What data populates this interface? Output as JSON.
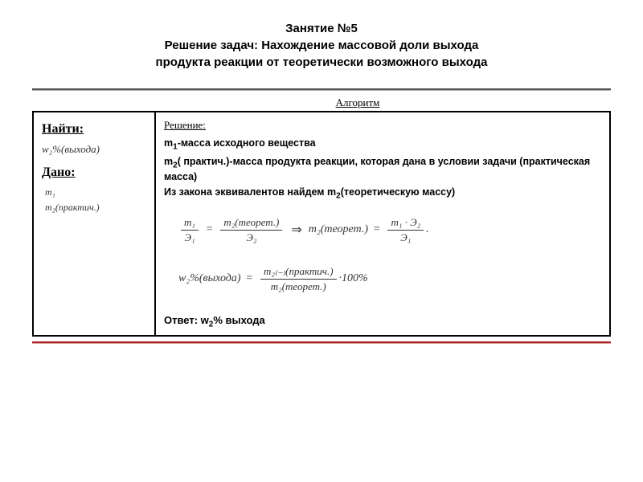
{
  "title": {
    "line1": "Занятие №5",
    "line2": "Решение задач: Нахождение массовой доли выхода",
    "line3": "продукта реакции от теоретически возможного выхода"
  },
  "algorithm_label": "Алгоритм",
  "left": {
    "find_label": "Найти:",
    "find_formula": "w₂%(выхода)",
    "given_label": "Дано:",
    "given_1": "m₁",
    "given_2": "m₂(практич.)"
  },
  "right": {
    "solution_label": "Решение:",
    "def1_pre": "m",
    "def1_sub": "1",
    "def1_post": "-масса исходного вещества",
    "def2_pre": "m",
    "def2_sub": "2",
    "def2_post": "( практич.)-масса продукта реакции, которая дана в условии задачи (практическая масса)",
    "def3_pre": "Из закона эквивалентов найдем m",
    "def3_sub": "2",
    "def3_post": "(теоретическую массу)",
    "eq1": {
      "f1_num": "m₁",
      "f1_den": "Э₁",
      "f2_num": "m₂(теорет.)",
      "f2_den": "Э₂",
      "res_lhs": "m₂(теорет.)",
      "res_num": "m₁ · Э₂",
      "res_den": "Э₁",
      "tail": "."
    },
    "eq2": {
      "lhs": "w₂%(выхода)",
      "num": "m₂₍₋₎(практич.)",
      "den": "m₂(теорет.)",
      "tail": "·100%"
    },
    "answer_pre": "Ответ: w",
    "answer_sub": "2",
    "answer_post": "% выхода"
  }
}
